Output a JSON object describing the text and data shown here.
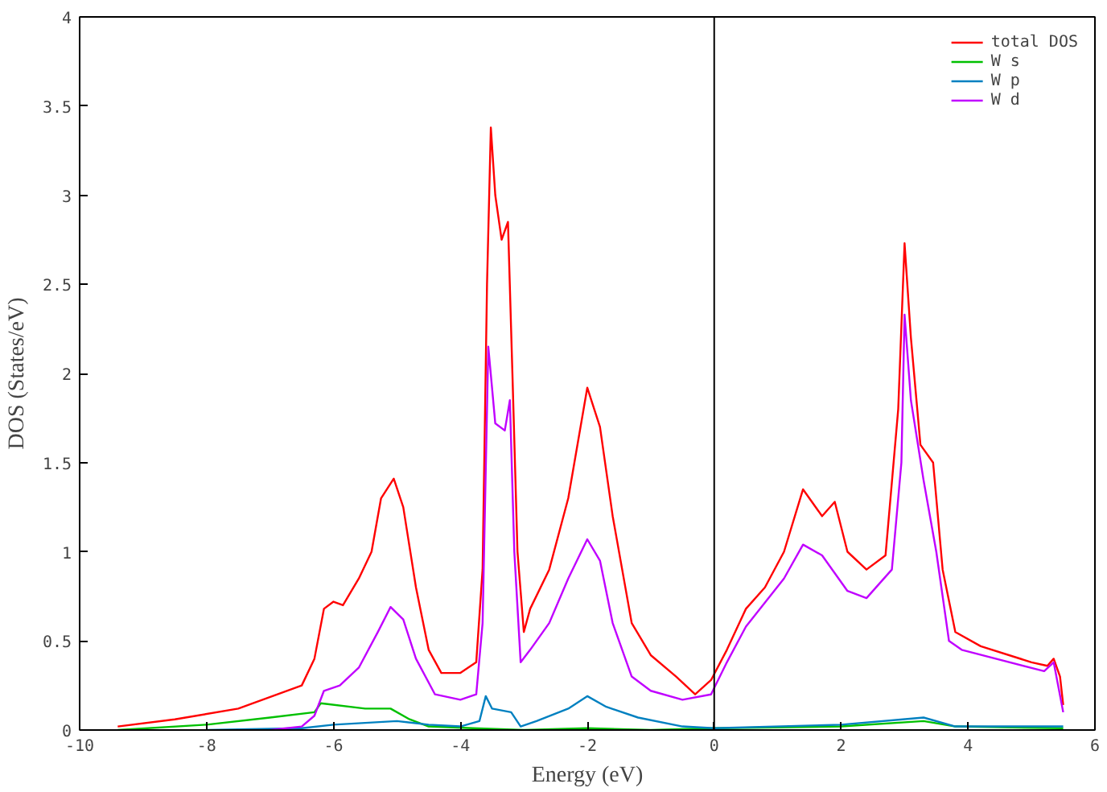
{
  "chart_data": {
    "type": "line",
    "xlabel": "Energy (eV)",
    "ylabel": "DOS (States/eV)",
    "xlim": [
      -10,
      6
    ],
    "ylim": [
      0,
      4
    ],
    "xticks": [
      -10,
      -8,
      -6,
      -4,
      -2,
      0,
      2,
      4,
      6
    ],
    "yticks": [
      0,
      0.5,
      1,
      1.5,
      2,
      2.5,
      3,
      3.5,
      4
    ],
    "grid": false,
    "legend": "top right",
    "marker": "none",
    "line_style": "solid",
    "ref_lines": [
      {
        "axis": "x",
        "value": 0,
        "color": "#000000"
      }
    ],
    "series": [
      {
        "name": "total DOS",
        "color": "#ff0000",
        "x": [
          -9.4,
          -8.5,
          -7.5,
          -6.5,
          -6.3,
          -6.15,
          -6.0,
          -5.85,
          -5.6,
          -5.4,
          -5.25,
          -5.05,
          -4.9,
          -4.7,
          -4.5,
          -4.3,
          -4.0,
          -3.75,
          -3.65,
          -3.58,
          -3.52,
          -3.45,
          -3.35,
          -3.25,
          -3.18,
          -3.1,
          -3.0,
          -2.9,
          -2.6,
          -2.3,
          -2.0,
          -1.8,
          -1.6,
          -1.3,
          -1.0,
          -0.6,
          -0.3,
          -0.05,
          0.2,
          0.5,
          0.8,
          1.1,
          1.4,
          1.7,
          1.9,
          2.1,
          2.4,
          2.7,
          2.9,
          3.0,
          3.1,
          3.25,
          3.45,
          3.6,
          3.8,
          4.2,
          5.0,
          5.25,
          5.35,
          5.45,
          5.5
        ],
        "values": [
          0.02,
          0.06,
          0.12,
          0.25,
          0.4,
          0.68,
          0.72,
          0.7,
          0.85,
          1.0,
          1.3,
          1.41,
          1.25,
          0.8,
          0.45,
          0.32,
          0.32,
          0.38,
          0.9,
          2.5,
          3.38,
          3.0,
          2.75,
          2.85,
          2.0,
          1.0,
          0.55,
          0.68,
          0.9,
          1.3,
          1.92,
          1.7,
          1.2,
          0.6,
          0.42,
          0.3,
          0.2,
          0.28,
          0.45,
          0.68,
          0.8,
          1.0,
          1.35,
          1.2,
          1.28,
          1.0,
          0.9,
          0.98,
          1.8,
          2.73,
          2.2,
          1.6,
          1.5,
          0.9,
          0.55,
          0.47,
          0.38,
          0.36,
          0.4,
          0.3,
          0.14
        ]
      },
      {
        "name": "W s",
        "color": "#00c000",
        "x": [
          -9.4,
          -8,
          -7,
          -6.3,
          -6.2,
          -5.5,
          -5.1,
          -4.8,
          -4.5,
          -3.8,
          -3,
          -2,
          -1,
          0,
          2,
          3.3,
          3.8,
          5.5
        ],
        "values": [
          0.0,
          0.03,
          0.07,
          0.1,
          0.15,
          0.12,
          0.12,
          0.06,
          0.02,
          0.01,
          0.0,
          0.01,
          0.0,
          0.01,
          0.02,
          0.05,
          0.02,
          0.01
        ]
      },
      {
        "name": "W p",
        "color": "#0080c0",
        "x": [
          -8,
          -6.5,
          -6,
          -5,
          -4.5,
          -4,
          -3.7,
          -3.6,
          -3.5,
          -3.2,
          -3.05,
          -2.8,
          -2.3,
          -2,
          -1.7,
          -1.2,
          -0.5,
          0,
          2,
          3.3,
          3.8,
          5.5
        ],
        "values": [
          0.0,
          0.01,
          0.03,
          0.05,
          0.03,
          0.02,
          0.05,
          0.19,
          0.12,
          0.1,
          0.02,
          0.05,
          0.12,
          0.19,
          0.13,
          0.07,
          0.02,
          0.01,
          0.03,
          0.07,
          0.02,
          0.02
        ]
      },
      {
        "name": "W d",
        "color": "#c000ff",
        "x": [
          -7,
          -6.5,
          -6.3,
          -6.15,
          -5.9,
          -5.6,
          -5.3,
          -5.1,
          -4.9,
          -4.7,
          -4.4,
          -4.0,
          -3.75,
          -3.65,
          -3.56,
          -3.45,
          -3.3,
          -3.22,
          -3.15,
          -3.05,
          -2.9,
          -2.6,
          -2.3,
          -2.0,
          -1.8,
          -1.6,
          -1.3,
          -1.0,
          -0.5,
          -0.05,
          0.2,
          0.5,
          1.1,
          1.4,
          1.7,
          2.1,
          2.4,
          2.8,
          2.95,
          3.0,
          3.1,
          3.3,
          3.5,
          3.7,
          3.9,
          5.2,
          5.35,
          5.5
        ],
        "values": [
          0.0,
          0.02,
          0.08,
          0.22,
          0.25,
          0.35,
          0.55,
          0.69,
          0.62,
          0.4,
          0.2,
          0.17,
          0.2,
          0.6,
          2.15,
          1.72,
          1.68,
          1.85,
          1.0,
          0.38,
          0.45,
          0.6,
          0.85,
          1.07,
          0.95,
          0.6,
          0.3,
          0.22,
          0.17,
          0.2,
          0.38,
          0.58,
          0.85,
          1.04,
          0.98,
          0.78,
          0.74,
          0.9,
          1.5,
          2.33,
          1.85,
          1.4,
          1.0,
          0.5,
          0.45,
          0.33,
          0.38,
          0.1
        ]
      }
    ]
  }
}
